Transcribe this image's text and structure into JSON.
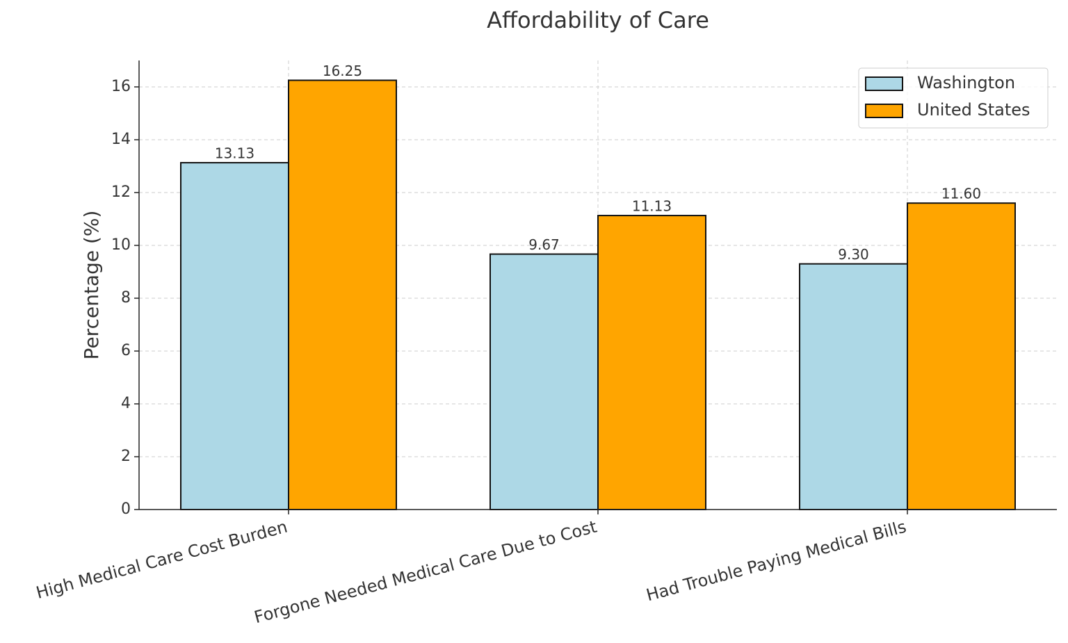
{
  "chart_data": {
    "type": "bar",
    "title": "Affordability of Care",
    "y_label": "Percentage (%)",
    "categories": [
      "High Medical Care Cost Burden",
      "Forgone Needed Medical Care Due to Cost",
      "Had Trouble Paying Medical Bills"
    ],
    "series": [
      {
        "name": "Washington",
        "color": "#add8e6",
        "values": [
          13.13,
          9.67,
          9.3
        ],
        "value_labels": [
          "13.13",
          "9.67",
          "9.30"
        ]
      },
      {
        "name": "United States",
        "color": "#ffa500",
        "values": [
          16.25,
          11.13,
          11.6
        ],
        "value_labels": [
          "16.25",
          "11.13",
          "11.60"
        ]
      }
    ],
    "ylim": [
      0,
      17
    ],
    "yticks": [
      0,
      2,
      4,
      6,
      8,
      10,
      12,
      14,
      16
    ],
    "grid": true,
    "legend": "upper right"
  }
}
